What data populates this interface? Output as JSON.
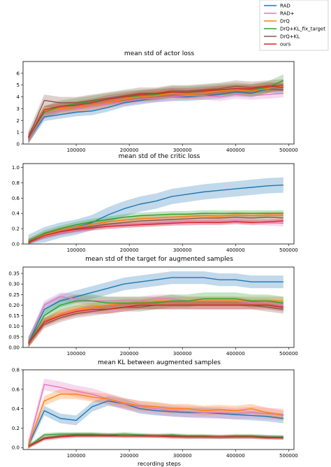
{
  "legend": {
    "entries": [
      "RAD",
      "RAD+",
      "DrQ",
      "DrQ+KL_fix_target",
      "DrQ+KL",
      "ours"
    ],
    "colors": [
      "#1f77b4",
      "#e377c2",
      "#ff7f0e",
      "#2ca02c",
      "#8c564b",
      "#d62728"
    ],
    "placement": "top-right"
  },
  "xlabel": "recording steps",
  "chart_data": [
    {
      "type": "line",
      "title": "mean std of actor loss",
      "xlim": [
        0,
        510000
      ],
      "ylim": [
        0,
        7
      ],
      "xticks": [
        100000,
        200000,
        300000,
        400000,
        500000
      ],
      "xtick_labels": [
        "100000",
        "200000",
        "300000",
        "400000",
        "500000"
      ],
      "yticks": [
        0,
        1,
        2,
        3,
        4,
        5,
        6
      ],
      "x": [
        10000,
        40000,
        70000,
        100000,
        130000,
        160000,
        190000,
        220000,
        250000,
        280000,
        310000,
        340000,
        370000,
        400000,
        430000,
        460000,
        490000
      ],
      "series": [
        {
          "name": "RAD",
          "values": [
            0.4,
            2.3,
            2.5,
            2.7,
            2.8,
            3.1,
            3.5,
            3.7,
            3.9,
            4.0,
            4.0,
            4.1,
            4.2,
            4.4,
            4.3,
            4.7,
            4.6
          ],
          "spread": 0.35
        },
        {
          "name": "RAD+",
          "values": [
            0.4,
            2.5,
            2.8,
            3.0,
            3.2,
            3.4,
            3.6,
            3.8,
            3.9,
            4.0,
            4.1,
            4.1,
            4.0,
            4.2,
            4.1,
            4.2,
            4.3
          ],
          "spread": 0.35
        },
        {
          "name": "DrQ",
          "values": [
            0.5,
            2.8,
            3.0,
            3.1,
            3.3,
            3.5,
            3.8,
            4.0,
            4.1,
            4.3,
            4.2,
            4.3,
            4.5,
            4.6,
            4.5,
            4.7,
            4.9
          ],
          "spread": 0.4
        },
        {
          "name": "DrQ+KL_fix_target",
          "values": [
            0.5,
            2.7,
            3.2,
            3.4,
            3.6,
            3.8,
            4.0,
            4.1,
            4.2,
            4.4,
            4.4,
            4.5,
            4.6,
            4.7,
            4.6,
            4.8,
            5.4
          ],
          "spread": 0.5
        },
        {
          "name": "DrQ+KL",
          "values": [
            0.6,
            3.7,
            3.5,
            3.5,
            3.7,
            3.9,
            4.1,
            4.3,
            4.3,
            4.5,
            4.5,
            4.6,
            4.7,
            4.9,
            4.8,
            4.9,
            5.0
          ],
          "spread": 0.5
        },
        {
          "name": "ours",
          "values": [
            0.5,
            2.9,
            3.2,
            3.3,
            3.5,
            3.8,
            4.0,
            4.2,
            4.3,
            4.4,
            4.4,
            4.5,
            4.6,
            4.7,
            4.7,
            4.9,
            4.8
          ],
          "spread": 0.35
        }
      ]
    },
    {
      "type": "line",
      "title": "mean std of the critic loss",
      "xlim": [
        0,
        510000
      ],
      "ylim": [
        0,
        1.05
      ],
      "xticks": [
        100000,
        200000,
        300000,
        400000,
        500000
      ],
      "xtick_labels": [
        "100000",
        "200000",
        "300000",
        "400000",
        "500000"
      ],
      "yticks": [
        0.0,
        0.2,
        0.4,
        0.6,
        0.8,
        1.0
      ],
      "ytick_labels": [
        "0.0",
        "0.2",
        "0.4",
        "0.6",
        "0.8",
        "1.0"
      ],
      "x": [
        10000,
        40000,
        70000,
        100000,
        130000,
        160000,
        190000,
        220000,
        250000,
        280000,
        310000,
        340000,
        370000,
        400000,
        430000,
        460000,
        490000
      ],
      "series": [
        {
          "name": "RAD",
          "values": [
            0.02,
            0.12,
            0.18,
            0.22,
            0.28,
            0.38,
            0.46,
            0.52,
            0.56,
            0.62,
            0.65,
            0.68,
            0.7,
            0.72,
            0.74,
            0.76,
            0.77
          ],
          "spread": 0.1
        },
        {
          "name": "RAD+",
          "values": [
            0.02,
            0.1,
            0.15,
            0.18,
            0.21,
            0.23,
            0.25,
            0.26,
            0.27,
            0.28,
            0.28,
            0.29,
            0.29,
            0.3,
            0.29,
            0.28,
            0.27
          ],
          "spread": 0.04
        },
        {
          "name": "DrQ",
          "values": [
            0.03,
            0.12,
            0.18,
            0.22,
            0.26,
            0.29,
            0.31,
            0.33,
            0.34,
            0.35,
            0.36,
            0.37,
            0.36,
            0.38,
            0.37,
            0.38,
            0.38
          ],
          "spread": 0.04
        },
        {
          "name": "DrQ+KL_fix_target",
          "values": [
            0.03,
            0.14,
            0.2,
            0.25,
            0.29,
            0.32,
            0.35,
            0.37,
            0.38,
            0.39,
            0.39,
            0.4,
            0.4,
            0.4,
            0.4,
            0.4,
            0.4
          ],
          "spread": 0.04
        },
        {
          "name": "DrQ+KL",
          "values": [
            0.02,
            0.11,
            0.16,
            0.2,
            0.23,
            0.26,
            0.28,
            0.3,
            0.31,
            0.32,
            0.33,
            0.34,
            0.34,
            0.35,
            0.34,
            0.35,
            0.34
          ],
          "spread": 0.04
        },
        {
          "name": "ours",
          "values": [
            0.02,
            0.11,
            0.16,
            0.19,
            0.21,
            0.23,
            0.24,
            0.25,
            0.26,
            0.27,
            0.28,
            0.28,
            0.28,
            0.29,
            0.28,
            0.29,
            0.3
          ],
          "spread": 0.03
        }
      ]
    },
    {
      "type": "line",
      "title": "mean std of the target for augmented samples",
      "xlim": [
        0,
        510000
      ],
      "ylim": [
        0,
        0.38
      ],
      "xticks": [
        100000,
        200000,
        300000,
        400000,
        500000
      ],
      "xtick_labels": [
        "100000",
        "200000",
        "300000",
        "400000",
        "500000"
      ],
      "yticks": [
        0.0,
        0.05,
        0.1,
        0.15,
        0.2,
        0.25,
        0.3,
        0.35
      ],
      "ytick_labels": [
        "0.00",
        "0.05",
        "0.10",
        "0.15",
        "0.20",
        "0.25",
        "0.30",
        "0.35"
      ],
      "x": [
        10000,
        40000,
        70000,
        100000,
        130000,
        160000,
        190000,
        220000,
        250000,
        280000,
        310000,
        340000,
        370000,
        400000,
        430000,
        460000,
        490000
      ],
      "series": [
        {
          "name": "RAD",
          "values": [
            0.02,
            0.18,
            0.22,
            0.24,
            0.26,
            0.28,
            0.3,
            0.31,
            0.32,
            0.33,
            0.33,
            0.33,
            0.32,
            0.32,
            0.31,
            0.31,
            0.31
          ],
          "spread": 0.03
        },
        {
          "name": "RAD+",
          "values": [
            0.03,
            0.2,
            0.24,
            0.23,
            0.22,
            0.22,
            0.22,
            0.22,
            0.23,
            0.23,
            0.22,
            0.22,
            0.22,
            0.22,
            0.21,
            0.21,
            0.2
          ],
          "spread": 0.02
        },
        {
          "name": "DrQ",
          "values": [
            0.02,
            0.12,
            0.16,
            0.18,
            0.19,
            0.2,
            0.21,
            0.21,
            0.22,
            0.22,
            0.22,
            0.22,
            0.22,
            0.22,
            0.22,
            0.22,
            0.22
          ],
          "spread": 0.02
        },
        {
          "name": "DrQ+KL_fix_target",
          "values": [
            0.02,
            0.15,
            0.2,
            0.22,
            0.22,
            0.21,
            0.21,
            0.21,
            0.21,
            0.22,
            0.22,
            0.23,
            0.23,
            0.23,
            0.22,
            0.22,
            0.21
          ],
          "spread": 0.03
        },
        {
          "name": "DrQ+KL",
          "values": [
            0.02,
            0.11,
            0.14,
            0.16,
            0.17,
            0.18,
            0.19,
            0.19,
            0.2,
            0.2,
            0.2,
            0.2,
            0.2,
            0.2,
            0.2,
            0.19,
            0.18
          ],
          "spread": 0.02
        },
        {
          "name": "ours",
          "values": [
            0.02,
            0.12,
            0.15,
            0.17,
            0.18,
            0.18,
            0.19,
            0.2,
            0.2,
            0.2,
            0.2,
            0.2,
            0.2,
            0.2,
            0.2,
            0.2,
            0.19
          ],
          "spread": 0.02
        }
      ]
    },
    {
      "type": "line",
      "title": "mean KL between augmented samples",
      "xlim": [
        0,
        510000
      ],
      "ylim": [
        -0.02,
        0.8
      ],
      "xticks": [
        100000,
        200000,
        300000,
        400000,
        500000
      ],
      "xtick_labels": [
        "100000",
        "200000",
        "300000",
        "400000",
        "500000"
      ],
      "yticks": [
        0.0,
        0.2,
        0.4,
        0.6,
        0.8
      ],
      "ytick_labels": [
        "0.0",
        "0.2",
        "0.4",
        "0.6",
        "0.8"
      ],
      "x": [
        10000,
        40000,
        70000,
        100000,
        130000,
        160000,
        190000,
        220000,
        250000,
        280000,
        310000,
        340000,
        370000,
        400000,
        430000,
        460000,
        490000
      ],
      "series": [
        {
          "name": "RAD",
          "values": [
            0.02,
            0.38,
            0.3,
            0.28,
            0.42,
            0.48,
            0.45,
            0.4,
            0.38,
            0.37,
            0.36,
            0.36,
            0.35,
            0.34,
            0.33,
            0.32,
            0.3
          ],
          "spread": 0.05
        },
        {
          "name": "RAD+",
          "values": [
            0.03,
            0.65,
            0.62,
            0.58,
            0.55,
            0.5,
            0.45,
            0.42,
            0.4,
            0.38,
            0.37,
            0.36,
            0.36,
            0.35,
            0.36,
            0.35,
            0.34
          ],
          "spread": 0.06
        },
        {
          "name": "DrQ",
          "values": [
            0.02,
            0.48,
            0.55,
            0.55,
            0.52,
            0.5,
            0.46,
            0.43,
            0.42,
            0.4,
            0.4,
            0.38,
            0.39,
            0.38,
            0.4,
            0.36,
            0.33
          ],
          "spread": 0.05
        },
        {
          "name": "DrQ+KL_fix_target",
          "values": [
            0.01,
            0.13,
            0.14,
            0.14,
            0.14,
            0.13,
            0.14,
            0.13,
            0.12,
            0.13,
            0.12,
            0.12,
            0.11,
            0.12,
            0.12,
            0.11,
            0.11
          ],
          "spread": 0.02
        },
        {
          "name": "DrQ+KL",
          "values": [
            0.01,
            0.1,
            0.12,
            0.13,
            0.13,
            0.13,
            0.12,
            0.12,
            0.12,
            0.12,
            0.11,
            0.11,
            0.11,
            0.11,
            0.11,
            0.11,
            0.1
          ],
          "spread": 0.02
        },
        {
          "name": "ours",
          "values": [
            0.01,
            0.09,
            0.11,
            0.12,
            0.12,
            0.12,
            0.12,
            0.12,
            0.12,
            0.11,
            0.11,
            0.11,
            0.11,
            0.11,
            0.11,
            0.1,
            0.1
          ],
          "spread": 0.02
        }
      ]
    }
  ]
}
